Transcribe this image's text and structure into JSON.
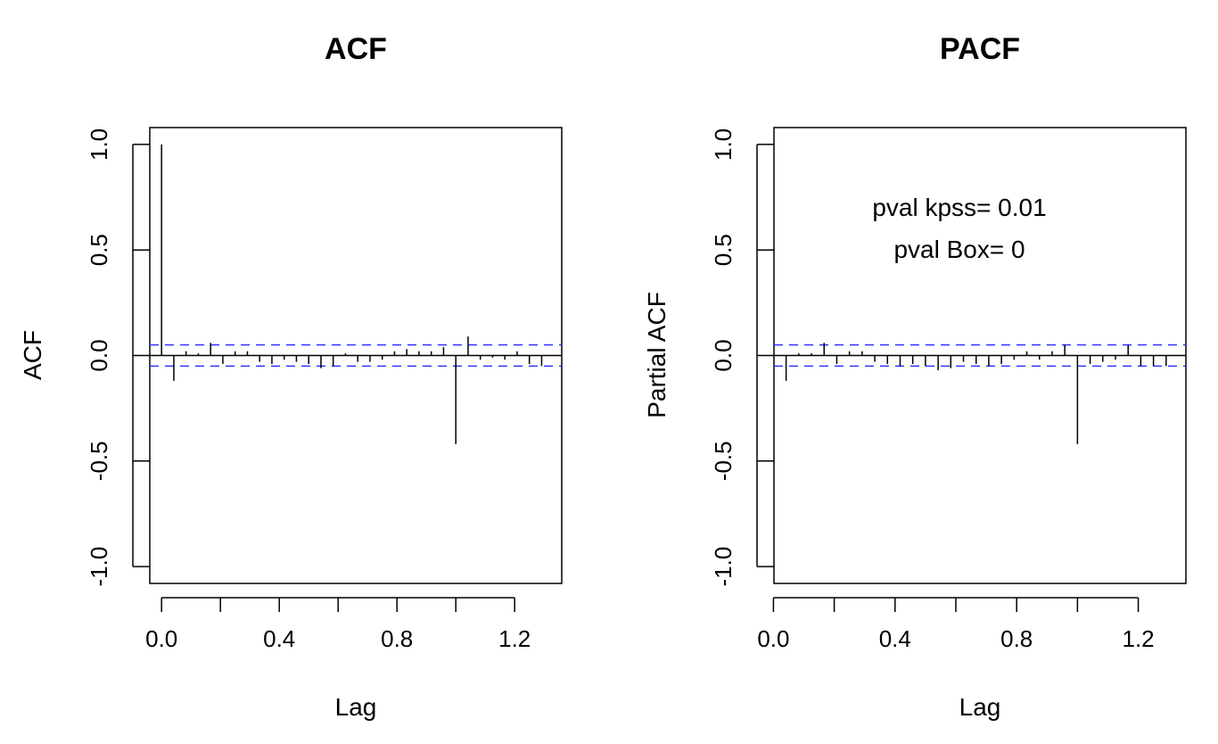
{
  "chart_data": [
    {
      "type": "bar",
      "title": "ACF",
      "xlabel": "Lag",
      "ylabel": "ACF",
      "xlim": [
        -0.04,
        1.36
      ],
      "ylim": [
        -1.08,
        1.08
      ],
      "xticks": [
        0.0,
        0.4,
        0.8,
        1.2
      ],
      "xtick_labels": [
        "0.0",
        "0.4",
        "0.8",
        "1.2"
      ],
      "yticks": [
        -1.0,
        -0.5,
        0.0,
        0.5,
        1.0
      ],
      "ytick_labels": [
        "-1.0",
        "-0.5",
        "0.0",
        "0.5",
        "1.0"
      ],
      "confidence_band": [
        0.05,
        -0.05
      ],
      "x": [
        0.0,
        0.0417,
        0.0833,
        0.125,
        0.1667,
        0.2083,
        0.25,
        0.2917,
        0.3333,
        0.375,
        0.4167,
        0.4583,
        0.5,
        0.5417,
        0.5833,
        0.625,
        0.6667,
        0.7083,
        0.75,
        0.7917,
        0.8333,
        0.875,
        0.9167,
        0.9583,
        1.0,
        1.0417,
        1.0833,
        1.125,
        1.1667,
        1.2083,
        1.25,
        1.2917
      ],
      "values": [
        1.0,
        -0.12,
        0.02,
        0.01,
        0.06,
        -0.04,
        0.02,
        0.02,
        -0.03,
        -0.04,
        -0.02,
        -0.03,
        -0.04,
        -0.06,
        -0.05,
        0.01,
        -0.03,
        -0.03,
        -0.02,
        0.02,
        0.03,
        0.02,
        0.02,
        0.04,
        -0.42,
        0.09,
        -0.02,
        -0.01,
        -0.02,
        0.02,
        -0.04,
        -0.05
      ]
    },
    {
      "type": "bar",
      "title": "PACF",
      "xlabel": "Lag",
      "ylabel": "Partial ACF",
      "xlim": [
        0.0017,
        1.3567
      ],
      "ylim": [
        -1.08,
        1.08
      ],
      "xticks": [
        0.0,
        0.4,
        0.8,
        1.2
      ],
      "xtick_labels": [
        "0.0",
        "0.4",
        "0.8",
        "1.2"
      ],
      "yticks": [
        -1.0,
        -0.5,
        0.0,
        0.5,
        1.0
      ],
      "ytick_labels": [
        "-1.0",
        "-0.5",
        "0.0",
        "0.5",
        "1.0"
      ],
      "confidence_band": [
        0.05,
        -0.05
      ],
      "x": [
        0.0417,
        0.0833,
        0.125,
        0.1667,
        0.2083,
        0.25,
        0.2917,
        0.3333,
        0.375,
        0.4167,
        0.4583,
        0.5,
        0.5417,
        0.5833,
        0.625,
        0.6667,
        0.7083,
        0.75,
        0.7917,
        0.8333,
        0.875,
        0.9167,
        0.9583,
        1.0,
        1.0417,
        1.0833,
        1.125,
        1.1667,
        1.2083,
        1.25,
        1.2917
      ],
      "values": [
        -0.12,
        0.01,
        0.01,
        0.06,
        -0.04,
        0.02,
        0.02,
        -0.03,
        -0.04,
        -0.05,
        -0.04,
        -0.05,
        -0.07,
        -0.06,
        -0.03,
        -0.04,
        -0.05,
        -0.04,
        -0.02,
        0.02,
        -0.02,
        0.02,
        0.05,
        -0.42,
        -0.04,
        -0.03,
        -0.02,
        0.05,
        -0.05,
        -0.05,
        -0.05
      ],
      "annotations": [
        "pval kpss= 0.01",
        "pval Box= 0"
      ]
    }
  ],
  "colors": {
    "bars": "#000000",
    "zero_line": "#000000",
    "confidence_band": "#3333ff",
    "frame": "#000000"
  }
}
